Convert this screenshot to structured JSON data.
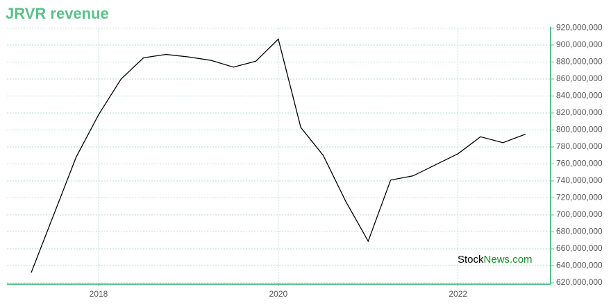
{
  "chart_data": {
    "type": "line",
    "title": "JRVR revenue",
    "watermark": {
      "part1": "Stock",
      "part2": "News.com"
    },
    "x": [
      2017.25,
      2017.75,
      2018,
      2018.25,
      2018.5,
      2018.75,
      2019,
      2019.25,
      2019.5,
      2019.75,
      2020,
      2020.25,
      2020.5,
      2020.75,
      2021,
      2021.25,
      2021.5,
      2022,
      2022.25,
      2022.5,
      2022.75
    ],
    "series": [
      {
        "name": "JRVR revenue",
        "color": "#000000",
        "values": [
          632000000,
          768000000,
          818000000,
          860000000,
          885000000,
          889000000,
          886000000,
          882000000,
          874000000,
          881000000,
          907000000,
          803000000,
          770000000,
          716000000,
          669000000,
          741000000,
          746000000,
          772000000,
          792000000,
          785000000,
          795000000
        ]
      }
    ],
    "xlim": [
      2016.98,
      2023.03
    ],
    "xticks": [
      2018,
      2020,
      2022
    ],
    "ylim": [
      620000000,
      920000000
    ],
    "yticks": [
      {
        "value": 620000000,
        "label": "620,000,000"
      },
      {
        "value": 640000000,
        "label": "640,000,000"
      },
      {
        "value": 660000000,
        "label": "660,000,000"
      },
      {
        "value": 680000000,
        "label": "680,000,000"
      },
      {
        "value": 700000000,
        "label": "700,000,000"
      },
      {
        "value": 720000000,
        "label": "720,000,000"
      },
      {
        "value": 740000000,
        "label": "740,000,000"
      },
      {
        "value": 760000000,
        "label": "760,000,000"
      },
      {
        "value": 780000000,
        "label": "780,000,000"
      },
      {
        "value": 800000000,
        "label": "800,000,000"
      },
      {
        "value": 820000000,
        "label": "820,000,000"
      },
      {
        "value": 840000000,
        "label": "840,000,000"
      },
      {
        "value": 860000000,
        "label": "860,000,000"
      },
      {
        "value": 880000000,
        "label": "880,000,000"
      },
      {
        "value": 900000000,
        "label": "900,000,000"
      },
      {
        "value": 920000000,
        "label": "920,000,000"
      }
    ],
    "grid": true,
    "axis_color": "#5cc08a"
  }
}
